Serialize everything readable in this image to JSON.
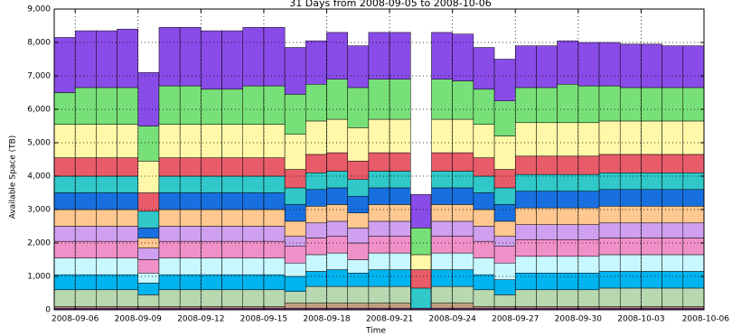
{
  "chart_data": {
    "type": "bar",
    "stacked": true,
    "title": "31 Days from 2008-09-05 to 2008-10-06",
    "xlabel": "Time",
    "ylabel": "Available Space (TB)",
    "ylim": [
      0,
      9000
    ],
    "yticks": [
      "0",
      "1,000",
      "2,000",
      "3,000",
      "4,000",
      "5,000",
      "6,000",
      "7,000",
      "8,000",
      "9,000"
    ],
    "grid": true,
    "x_tick_labels": [
      "2008-09-06",
      "2008-09-09",
      "2008-09-12",
      "2008-09-15",
      "2008-09-18",
      "2008-09-21",
      "2008-09-24",
      "2008-09-27",
      "2008-09-30",
      "2008-10-03",
      "2008-10-06"
    ],
    "x_tick_positions": [
      1,
      4,
      7,
      10,
      13,
      16,
      19,
      22,
      25,
      28,
      31
    ],
    "x_range": [
      0,
      31
    ],
    "categories": [
      "2008-09-05",
      "2008-09-06",
      "2008-09-07",
      "2008-09-08",
      "2008-09-09",
      "2008-09-10",
      "2008-09-11",
      "2008-09-12",
      "2008-09-13",
      "2008-09-14",
      "2008-09-15",
      "2008-09-16",
      "2008-09-17",
      "2008-09-18",
      "2008-09-19",
      "2008-09-20",
      "2008-09-21",
      "2008-09-22",
      "2008-09-23",
      "2008-09-24",
      "2008-09-25",
      "2008-09-26",
      "2008-09-27",
      "2008-09-28",
      "2008-09-29",
      "2008-09-30",
      "2008-10-01",
      "2008-10-02",
      "2008-10-03",
      "2008-10-04",
      "2008-10-05"
    ],
    "colors": [
      "#7e2f8e",
      "#c0a080",
      "#b8d8b0",
      "#00b4f0",
      "#c8f8ff",
      "#f090c8",
      "#d0a0f0",
      "#ffc890",
      "#1870e0",
      "#30c8c8",
      "#e85c6a",
      "#fff8a8",
      "#78e078",
      "#8a4ce8"
    ],
    "series": [
      {
        "values": [
          50,
          50,
          50,
          50,
          50,
          50,
          50,
          50,
          50,
          50,
          50,
          50,
          50,
          50,
          50,
          50,
          50,
          0,
          50,
          50,
          50,
          50,
          50,
          50,
          50,
          50,
          50,
          50,
          50,
          50,
          50
        ]
      },
      {
        "values": [
          50,
          50,
          50,
          50,
          50,
          50,
          50,
          50,
          50,
          50,
          50,
          150,
          150,
          150,
          150,
          150,
          150,
          0,
          150,
          150,
          50,
          50,
          50,
          50,
          50,
          50,
          50,
          50,
          50,
          50,
          50
        ]
      },
      {
        "values": [
          500,
          500,
          500,
          500,
          350,
          500,
          500,
          500,
          500,
          500,
          500,
          350,
          500,
          500,
          500,
          500,
          500,
          0,
          500,
          500,
          500,
          350,
          500,
          500,
          500,
          500,
          550,
          550,
          550,
          550,
          550
        ]
      },
      {
        "values": [
          450,
          450,
          450,
          450,
          350,
          450,
          450,
          450,
          450,
          450,
          450,
          450,
          450,
          500,
          400,
          500,
          500,
          0,
          500,
          500,
          450,
          450,
          500,
          500,
          500,
          500,
          500,
          500,
          500,
          500,
          500
        ]
      },
      {
        "values": [
          500,
          500,
          500,
          500,
          300,
          500,
          500,
          500,
          500,
          500,
          500,
          400,
          500,
          500,
          400,
          500,
          500,
          0,
          500,
          500,
          500,
          500,
          500,
          500,
          500,
          500,
          500,
          500,
          500,
          500,
          500
        ]
      },
      {
        "values": [
          500,
          500,
          500,
          500,
          400,
          500,
          500,
          500,
          500,
          500,
          500,
          500,
          500,
          500,
          500,
          500,
          500,
          0,
          500,
          500,
          500,
          500,
          500,
          500,
          500,
          500,
          500,
          500,
          500,
          500,
          500
        ]
      },
      {
        "values": [
          450,
          450,
          450,
          450,
          350,
          450,
          450,
          450,
          450,
          450,
          450,
          300,
          450,
          450,
          450,
          450,
          450,
          0,
          450,
          450,
          450,
          300,
          450,
          450,
          450,
          450,
          450,
          450,
          450,
          450,
          450
        ]
      },
      {
        "values": [
          500,
          500,
          500,
          500,
          300,
          500,
          500,
          500,
          500,
          500,
          500,
          450,
          500,
          500,
          450,
          500,
          500,
          0,
          500,
          500,
          500,
          450,
          500,
          500,
          500,
          500,
          500,
          500,
          500,
          500,
          500
        ]
      },
      {
        "values": [
          500,
          500,
          500,
          500,
          300,
          500,
          500,
          500,
          500,
          500,
          500,
          500,
          500,
          500,
          500,
          500,
          500,
          0,
          500,
          500,
          500,
          500,
          500,
          500,
          500,
          500,
          500,
          500,
          500,
          500,
          500
        ]
      },
      {
        "values": [
          500,
          500,
          500,
          500,
          500,
          500,
          500,
          500,
          500,
          500,
          500,
          500,
          500,
          500,
          500,
          500,
          500,
          0,
          500,
          500,
          500,
          500,
          500,
          500,
          500,
          500,
          500,
          500,
          500,
          500,
          500
        ]
      },
      {
        "values": [
          550,
          550,
          550,
          550,
          550,
          550,
          550,
          550,
          550,
          550,
          550,
          550,
          550,
          550,
          550,
          550,
          550,
          0,
          550,
          550,
          550,
          550,
          550,
          550,
          550,
          550,
          550,
          550,
          550,
          550,
          550
        ]
      },
      {
        "values": [
          1000,
          1000,
          1000,
          1000,
          950,
          1000,
          1000,
          1000,
          1000,
          1000,
          1000,
          1050,
          1000,
          1000,
          1000,
          1000,
          1000,
          0,
          1000,
          1000,
          1000,
          1000,
          1000,
          1000,
          1000,
          1000,
          1000,
          1000,
          1000,
          1000,
          1000
        ]
      },
      {
        "values": [
          950,
          1100,
          1100,
          1100,
          1050,
          1150,
          1150,
          1050,
          1050,
          1150,
          1150,
          1200,
          1100,
          1200,
          1200,
          1200,
          1200,
          0,
          1200,
          1150,
          1050,
          1050,
          1050,
          1050,
          1150,
          1100,
          1050,
          1000,
          1000,
          1000,
          1000
        ]
      },
      {
        "values": [
          1650,
          1700,
          1700,
          1750,
          1600,
          1750,
          1750,
          1750,
          1750,
          1750,
          1750,
          1400,
          1300,
          1400,
          1250,
          1400,
          1400,
          0,
          1400,
          1400,
          1250,
          1250,
          1250,
          1250,
          1300,
          1300,
          1300,
          1300,
          1300,
          1250,
          1250
        ]
      }
    ],
    "gap_day_stack": [
      {
        "color": "#7e2f8e",
        "value": 50
      },
      {
        "color": "#30c8c8",
        "value": 600
      },
      {
        "color": "#e85c6a",
        "value": 550
      },
      {
        "color": "#fff8a8",
        "value": 450
      },
      {
        "color": "#78e078",
        "value": 800
      },
      {
        "color": "#8a4ce8",
        "value": 1000
      }
    ],
    "gap_day_index": 17
  }
}
